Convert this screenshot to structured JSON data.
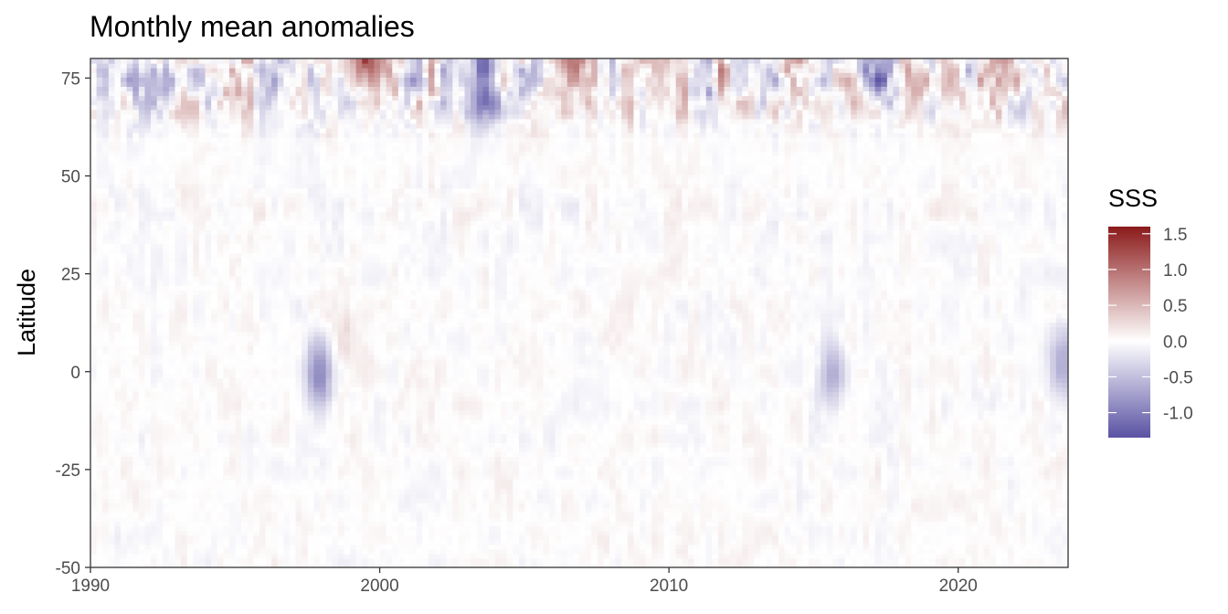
{
  "chart_data": {
    "type": "heatmap",
    "title": "Monthly mean anomalies",
    "xlabel": "",
    "ylabel": "Latitude",
    "xlim": [
      1990,
      2023.8
    ],
    "ylim": [
      -50,
      80
    ],
    "x_ticks": [
      1990,
      2000,
      2010,
      2020
    ],
    "x_tick_labels": [
      "1990",
      "2000",
      "2010",
      "2020"
    ],
    "y_ticks": [
      -50,
      -25,
      0,
      25,
      50,
      75
    ],
    "y_tick_labels": [
      "-50",
      "-25",
      "0",
      "25",
      "50",
      "75"
    ],
    "grid": false,
    "legend": {
      "title": "SSS",
      "position": "right",
      "range": [
        -1.35,
        1.6
      ],
      "breaks": [
        -1.0,
        -0.5,
        0.0,
        0.5,
        1.0,
        1.5
      ],
      "break_labels": [
        "-1.0",
        "-0.5",
        "0.0",
        "0.5",
        "1.0",
        "1.5"
      ],
      "colors": {
        "low": "#5a52a3",
        "mid": "#ffffff",
        "high": "#8b1a1a"
      }
    },
    "features": [
      {
        "x": 1997.9,
        "y": -1,
        "value": -0.95
      },
      {
        "x": 2015.6,
        "y": -1,
        "value": -0.7
      },
      {
        "x": 2003.6,
        "y": 76,
        "value": -1.2
      },
      {
        "x": 2017.5,
        "y": 77,
        "value": -1.1
      },
      {
        "x": 2006.6,
        "y": 77,
        "value": 1.4
      },
      {
        "x": 1999.6,
        "y": 78,
        "value": 1.2
      },
      {
        "x": 2023.6,
        "y": 2,
        "value": -0.6
      },
      {
        "x": 1998.8,
        "y": 10,
        "value": 0.25
      }
    ]
  }
}
